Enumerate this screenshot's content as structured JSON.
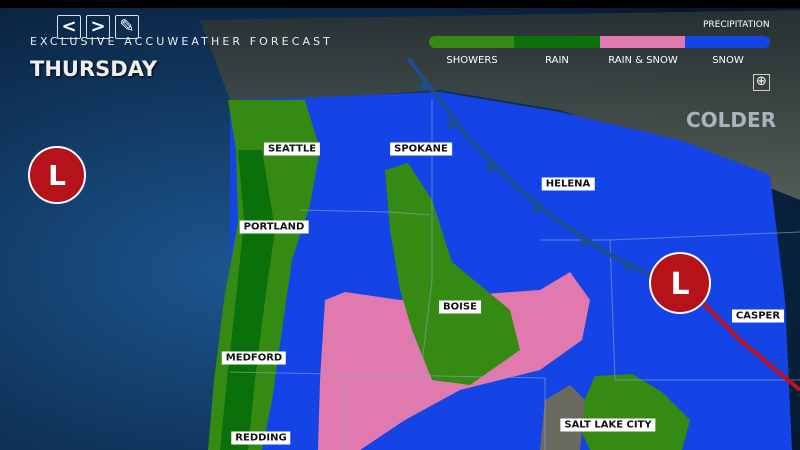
{
  "header": {
    "subtitle": "EXCLUSIVE ACCUWEATHER FORECAST",
    "day": "THURSDAY",
    "controls": {
      "prev": "<",
      "next": ">",
      "edit": "✎"
    }
  },
  "legend": {
    "title": "PRECIPITATION",
    "items": [
      {
        "label": "SHOWERS",
        "color": "#348a12"
      },
      {
        "label": "RAIN",
        "color": "#0a700a"
      },
      {
        "label": "RAIN & SNOW",
        "color": "#e07aae"
      },
      {
        "label": "SNOW",
        "color": "#1444e6"
      }
    ]
  },
  "zoom_icon": "⊕",
  "annotation": "COLDER",
  "pressure_systems": [
    {
      "label": "L",
      "type": "low"
    },
    {
      "label": "L",
      "type": "low"
    }
  ],
  "cities": [
    "SEATTLE",
    "SPOKANE",
    "HELENA",
    "PORTLAND",
    "BOISE",
    "CASPER",
    "MEDFORD",
    "SALT LAKE CITY",
    "REDDING"
  ]
}
